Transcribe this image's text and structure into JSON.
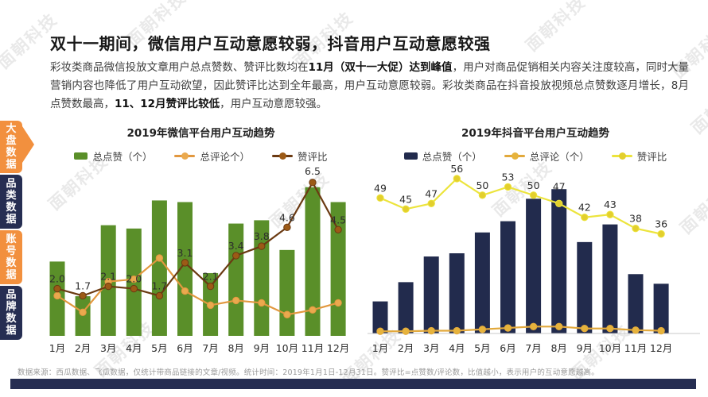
{
  "watermark": {
    "text": "面朝科技"
  },
  "sidebar": {
    "tabs": [
      {
        "label": "大盘数据",
        "style": "orange",
        "active": true
      },
      {
        "label": "品类数据",
        "style": "navy",
        "active": false
      },
      {
        "label": "账号数据",
        "style": "orange",
        "active": false
      },
      {
        "label": "品牌数据",
        "style": "navy",
        "active": false
      }
    ]
  },
  "title": "双十一期间，微信用户互动意愿较弱，抖音用户互动意愿较强",
  "body": {
    "segments": [
      {
        "text": "彩妆类商品微信投放文章用户总点赞数、赞评比数均在",
        "bold": false
      },
      {
        "text": "11月（双十一大促）达到峰值",
        "bold": true
      },
      {
        "text": "，用户对商品促销相关内容关注度较高，同时大量营销内容也降低了用户互动欲望，因此赞评比达到全年最高，用户互动意愿较弱。彩妆类商品在抖音投放视频总点赞数逐月增长，8月点赞数最高，",
        "bold": false
      },
      {
        "text": "11、12月赞评比较低",
        "bold": true
      },
      {
        "text": "，用户互动意愿较强。",
        "bold": false
      }
    ]
  },
  "footer": "数据来源：西瓜数据、飞瓜数据，仅统计带商品链接的文章/视频。统计时间：2019年1月1日-12月31日。赞评比=点赞数/评论数，比值越小，表示用户的互动意愿越高。",
  "colors": {
    "sidebar_orange": "#f2903e",
    "sidebar_navy": "#262e52",
    "green_bar": "#5a8f29",
    "navy_bar": "#222b4d",
    "orange_line_wechat": "#e2983f",
    "brown_line": "#6b3a12",
    "orange_line_douyin": "#e2a93c",
    "yellow_line": "#ece43c",
    "bottom_bar": "#262e52"
  },
  "chart_data": [
    {
      "type": "combo (bar+line)",
      "title": "2019年微信平台用户互动趋势",
      "categories": [
        "1月",
        "2月",
        "3月",
        "4月",
        "5月",
        "6月",
        "7月",
        "8月",
        "9月",
        "10月",
        "11月",
        "12月"
      ],
      "grid": false,
      "legend_position": "top",
      "bar_axis_note": "bar heights unlabeled; values are % of plot height estimated from pixels",
      "line_axis": {
        "min": 0,
        "max": 7
      },
      "series": [
        {
          "name": "总点赞（个）",
          "kind": "bar",
          "color": "#5a8f29",
          "values_pct": [
            45,
            24,
            67,
            65,
            82,
            81,
            38,
            68,
            70,
            52,
            90,
            81
          ]
        },
        {
          "name": "总评论个）",
          "kind": "line",
          "color": "#e2983f",
          "dot": "#eaa94e",
          "values_est": [
            1.7,
            1.0,
            2.3,
            2.4,
            3.3,
            1.9,
            1.3,
            1.5,
            1.4,
            0.9,
            1.1,
            1.4
          ]
        },
        {
          "name": "赞评比",
          "kind": "line",
          "color": "#6b3a12",
          "dot": "#9c5a16",
          "show_labels": true,
          "values": [
            2.0,
            1.7,
            2.1,
            2.0,
            1.7,
            3.1,
            2.1,
            3.4,
            3.8,
            4.6,
            6.5,
            4.5
          ],
          "labels": [
            "2.0",
            "1.7",
            "2.1",
            "2.0",
            "1.7",
            "3.1",
            "2.1",
            "3.4",
            "3.8",
            "4.6",
            "6.5",
            "4.5"
          ]
        }
      ]
    },
    {
      "type": "combo (bar+line)",
      "title": "2019年抖音平台用户互动趋势",
      "categories": [
        "1月",
        "2月",
        "3月",
        "4月",
        "5月",
        "6月",
        "7月",
        "8月",
        "9月",
        "10月",
        "11月",
        "12月"
      ],
      "grid": false,
      "legend_position": "top",
      "bar_axis_note": "bar heights unlabeled; values are % of plot height estimated from pixels; 8月 peak",
      "line_axis": {
        "min": 0,
        "max": 58
      },
      "series": [
        {
          "name": "总点赞（个）",
          "kind": "bar",
          "color": "#222b4d",
          "values_pct": [
            20,
            32,
            48,
            50,
            63,
            70,
            84,
            90,
            57,
            68,
            37,
            31
          ]
        },
        {
          "name": "总评论（个）",
          "kind": "line",
          "color": "#e2a93c",
          "dot": "#e6b33c",
          "values_est": [
            0.8,
            0.8,
            1.0,
            1.0,
            1.5,
            2.0,
            2.5,
            2.5,
            1.8,
            1.8,
            1.2,
            1.0
          ]
        },
        {
          "name": "赞评比",
          "kind": "line",
          "color": "#ece43c",
          "dot": "#e3cf2d",
          "show_labels": true,
          "values": [
            49,
            45,
            47,
            56,
            50,
            53,
            50,
            47,
            42,
            43,
            38,
            36
          ],
          "labels": [
            "49",
            "45",
            "47",
            "56",
            "50",
            "53",
            "50",
            "47",
            "42",
            "43",
            "38",
            "36"
          ]
        }
      ]
    }
  ]
}
